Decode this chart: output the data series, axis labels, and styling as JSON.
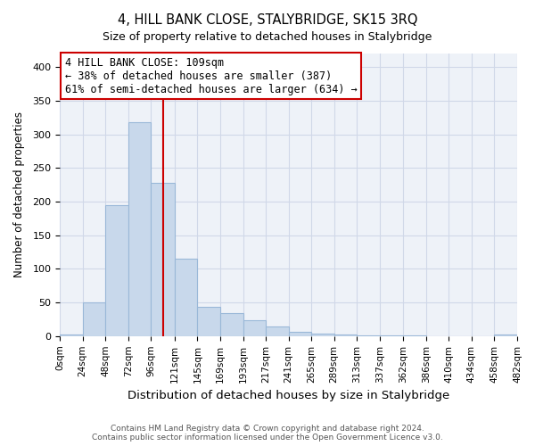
{
  "title": "4, HILL BANK CLOSE, STALYBRIDGE, SK15 3RQ",
  "subtitle": "Size of property relative to detached houses in Stalybridge",
  "xlabel": "Distribution of detached houses by size in Stalybridge",
  "ylabel": "Number of detached properties",
  "bar_edges": [
    0,
    24,
    48,
    72,
    96,
    121,
    145,
    169,
    193,
    217,
    241,
    265,
    289,
    313,
    337,
    362,
    386,
    410,
    434,
    458,
    482
  ],
  "bar_heights": [
    2,
    50,
    195,
    318,
    228,
    115,
    44,
    34,
    24,
    15,
    7,
    4,
    2,
    1,
    1,
    1,
    0,
    0,
    0,
    2
  ],
  "bar_color": "#c8d8eb",
  "bar_edgecolor": "#9ab8d8",
  "property_line_x": 109,
  "property_line_color": "#cc0000",
  "annotation_line1": "4 HILL BANK CLOSE: 109sqm",
  "annotation_line2": "← 38% of detached houses are smaller (387)",
  "annotation_line3": "61% of semi-detached houses are larger (634) →",
  "annotation_box_color": "#ffffff",
  "annotation_box_edgecolor": "#cc0000",
  "ylim": [
    0,
    420
  ],
  "xlim": [
    0,
    482
  ],
  "yticks": [
    0,
    50,
    100,
    150,
    200,
    250,
    300,
    350,
    400
  ],
  "tick_labels": [
    "0sqm",
    "24sqm",
    "48sqm",
    "72sqm",
    "96sqm",
    "121sqm",
    "145sqm",
    "169sqm",
    "193sqm",
    "217sqm",
    "241sqm",
    "265sqm",
    "289sqm",
    "313sqm",
    "337sqm",
    "362sqm",
    "386sqm",
    "410sqm",
    "434sqm",
    "458sqm",
    "482sqm"
  ],
  "footer_line1": "Contains HM Land Registry data © Crown copyright and database right 2024.",
  "footer_line2": "Contains public sector information licensed under the Open Government Licence v3.0.",
  "bg_color": "#ffffff",
  "plot_bg_color": "#eef2f8",
  "grid_color": "#d0d8e8"
}
